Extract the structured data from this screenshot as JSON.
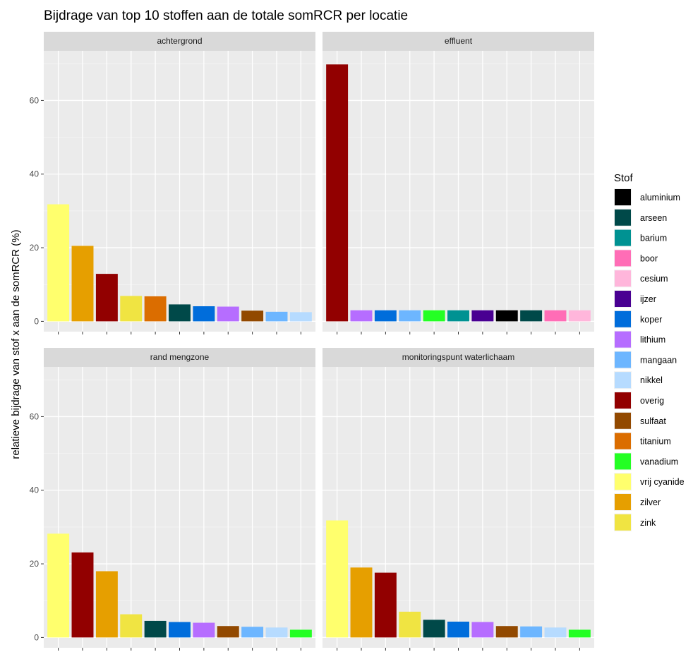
{
  "chart_data": {
    "type": "bar",
    "title": "Bijdrage van top 10 stoffen aan de totale somRCR per locatie",
    "xlabel": "",
    "ylabel": "relatieve bijdrage van stof x aan de somRCR (%)",
    "ylim": [
      0,
      70
    ],
    "yticks": [
      0,
      20,
      40,
      60
    ],
    "grid": true,
    "legend": {
      "title": "Stof",
      "placement": "right",
      "items": [
        {
          "label": "aluminium",
          "color": "#000000"
        },
        {
          "label": "arseen",
          "color": "#004949"
        },
        {
          "label": "barium",
          "color": "#009292"
        },
        {
          "label": "boor",
          "color": "#ff6db6"
        },
        {
          "label": "cesium",
          "color": "#ffb6db"
        },
        {
          "label": "ijzer",
          "color": "#490092"
        },
        {
          "label": "koper",
          "color": "#006ddb"
        },
        {
          "label": "lithium",
          "color": "#b66dff"
        },
        {
          "label": "mangaan",
          "color": "#6db6ff"
        },
        {
          "label": "nikkel",
          "color": "#b6dbff"
        },
        {
          "label": "overig",
          "color": "#920000"
        },
        {
          "label": "sulfaat",
          "color": "#924900"
        },
        {
          "label": "titanium",
          "color": "#db6d00"
        },
        {
          "label": "vanadium",
          "color": "#24ff24"
        },
        {
          "label": "vrij cyanide",
          "color": "#ffff6d"
        },
        {
          "label": "zilver",
          "color": "#e69f00"
        },
        {
          "label": "zink",
          "color": "#f0e442"
        }
      ]
    },
    "panels": [
      {
        "name": "achtergrond",
        "bars": [
          {
            "stof": "vrij cyanide",
            "value": 31.8
          },
          {
            "stof": "zilver",
            "value": 20.5
          },
          {
            "stof": "overig",
            "value": 12.9
          },
          {
            "stof": "zink",
            "value": 6.9
          },
          {
            "stof": "titanium",
            "value": 6.8
          },
          {
            "stof": "arseen",
            "value": 4.6
          },
          {
            "stof": "koper",
            "value": 4.1
          },
          {
            "stof": "lithium",
            "value": 4.0
          },
          {
            "stof": "sulfaat",
            "value": 2.9
          },
          {
            "stof": "mangaan",
            "value": 2.6
          },
          {
            "stof": "nikkel",
            "value": 2.5
          }
        ]
      },
      {
        "name": "effluent",
        "bars": [
          {
            "stof": "overig",
            "value": 69.8
          },
          {
            "stof": "lithium",
            "value": 3.0
          },
          {
            "stof": "koper",
            "value": 3.0
          },
          {
            "stof": "mangaan",
            "value": 3.0
          },
          {
            "stof": "vanadium",
            "value": 3.0
          },
          {
            "stof": "barium",
            "value": 3.0
          },
          {
            "stof": "ijzer",
            "value": 3.0
          },
          {
            "stof": "aluminium",
            "value": 3.0
          },
          {
            "stof": "arseen",
            "value": 3.0
          },
          {
            "stof": "boor",
            "value": 3.0
          },
          {
            "stof": "cesium",
            "value": 3.0
          }
        ]
      },
      {
        "name": "rand mengzone",
        "bars": [
          {
            "stof": "vrij cyanide",
            "value": 28.2
          },
          {
            "stof": "overig",
            "value": 23.1
          },
          {
            "stof": "zilver",
            "value": 18.0
          },
          {
            "stof": "zink",
            "value": 6.3
          },
          {
            "stof": "arseen",
            "value": 4.5
          },
          {
            "stof": "koper",
            "value": 4.2
          },
          {
            "stof": "lithium",
            "value": 4.0
          },
          {
            "stof": "sulfaat",
            "value": 3.1
          },
          {
            "stof": "mangaan",
            "value": 2.9
          },
          {
            "stof": "nikkel",
            "value": 2.7
          },
          {
            "stof": "vanadium",
            "value": 2.1
          }
        ]
      },
      {
        "name": "monitoringspunt waterlichaam",
        "bars": [
          {
            "stof": "vrij cyanide",
            "value": 31.8
          },
          {
            "stof": "zilver",
            "value": 19.0
          },
          {
            "stof": "overig",
            "value": 17.6
          },
          {
            "stof": "zink",
            "value": 7.0
          },
          {
            "stof": "arseen",
            "value": 4.8
          },
          {
            "stof": "koper",
            "value": 4.3
          },
          {
            "stof": "lithium",
            "value": 4.2
          },
          {
            "stof": "sulfaat",
            "value": 3.1
          },
          {
            "stof": "mangaan",
            "value": 3.0
          },
          {
            "stof": "nikkel",
            "value": 2.7
          },
          {
            "stof": "vanadium",
            "value": 2.1
          }
        ]
      }
    ]
  }
}
